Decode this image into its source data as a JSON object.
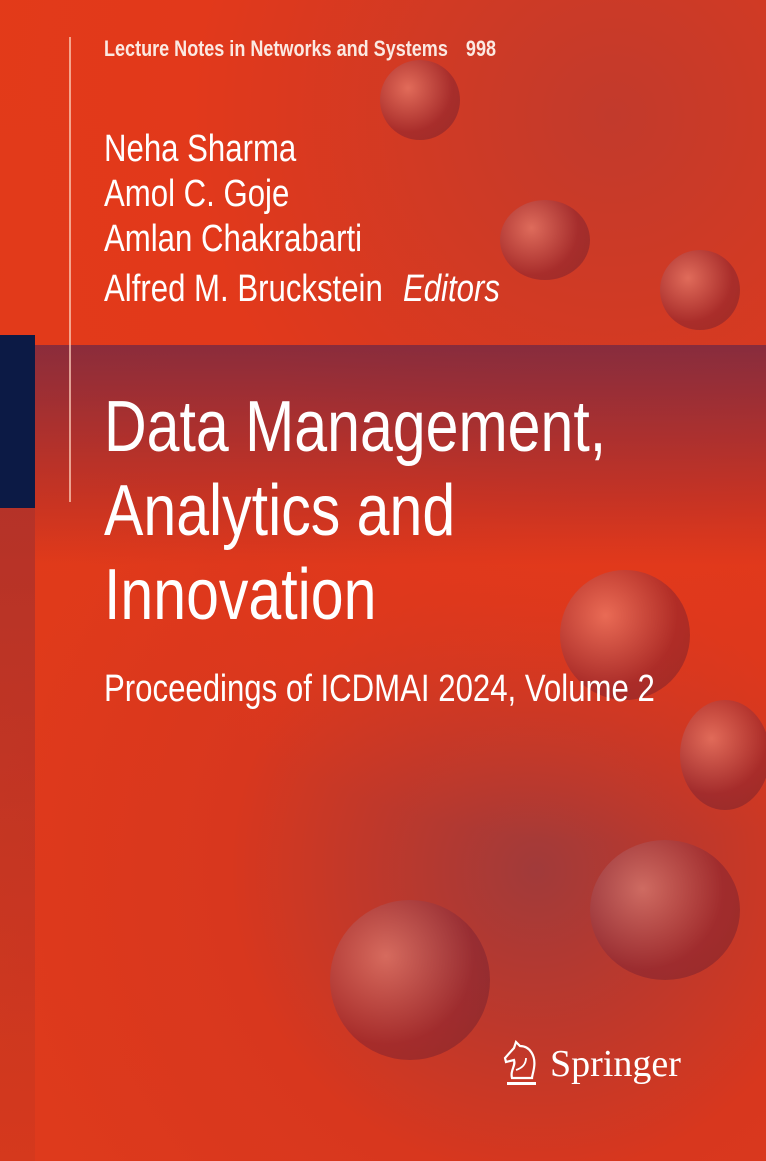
{
  "series": {
    "name": "Lecture Notes in Networks and Systems",
    "volume": "998"
  },
  "editors": [
    "Neha Sharma",
    "Amol C. Goje",
    "Amlan Chakrabarti",
    "Alfred M. Bruckstein"
  ],
  "editors_label": "Editors",
  "title_lines": [
    "Data Management,",
    "Analytics and",
    "Innovation"
  ],
  "subtitle": "Proceedings of ICDMAI 2024, Volume 2",
  "publisher": {
    "name": "Springer",
    "icon": "knight-horse-icon"
  },
  "colors": {
    "background": "#e2391b",
    "navy_block": "#0c1a45",
    "text": "#ffffff"
  }
}
